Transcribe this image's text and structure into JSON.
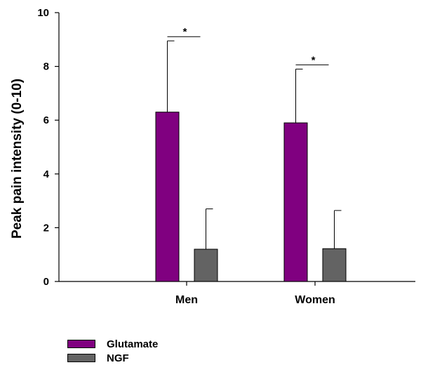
{
  "chart_data": {
    "type": "bar",
    "title": "",
    "xlabel": "",
    "ylabel": "Peak pain intensity (0-10)",
    "ylim": [
      0,
      10
    ],
    "yticks": [
      0,
      2,
      4,
      6,
      8,
      10
    ],
    "categories": [
      "Men",
      "Women"
    ],
    "series": [
      {
        "name": "Glutamate",
        "color": "#800080",
        "values": [
          6.3,
          5.9
        ],
        "error": [
          2.65,
          2.0
        ]
      },
      {
        "name": "NGF",
        "color": "#636363",
        "values": [
          1.2,
          1.22
        ],
        "error": [
          1.5,
          1.42
        ]
      }
    ],
    "annotations": [
      {
        "category": "Men",
        "text": "*"
      },
      {
        "category": "Women",
        "text": "*"
      }
    ],
    "legend_position": "bottom-left",
    "grid": false
  }
}
